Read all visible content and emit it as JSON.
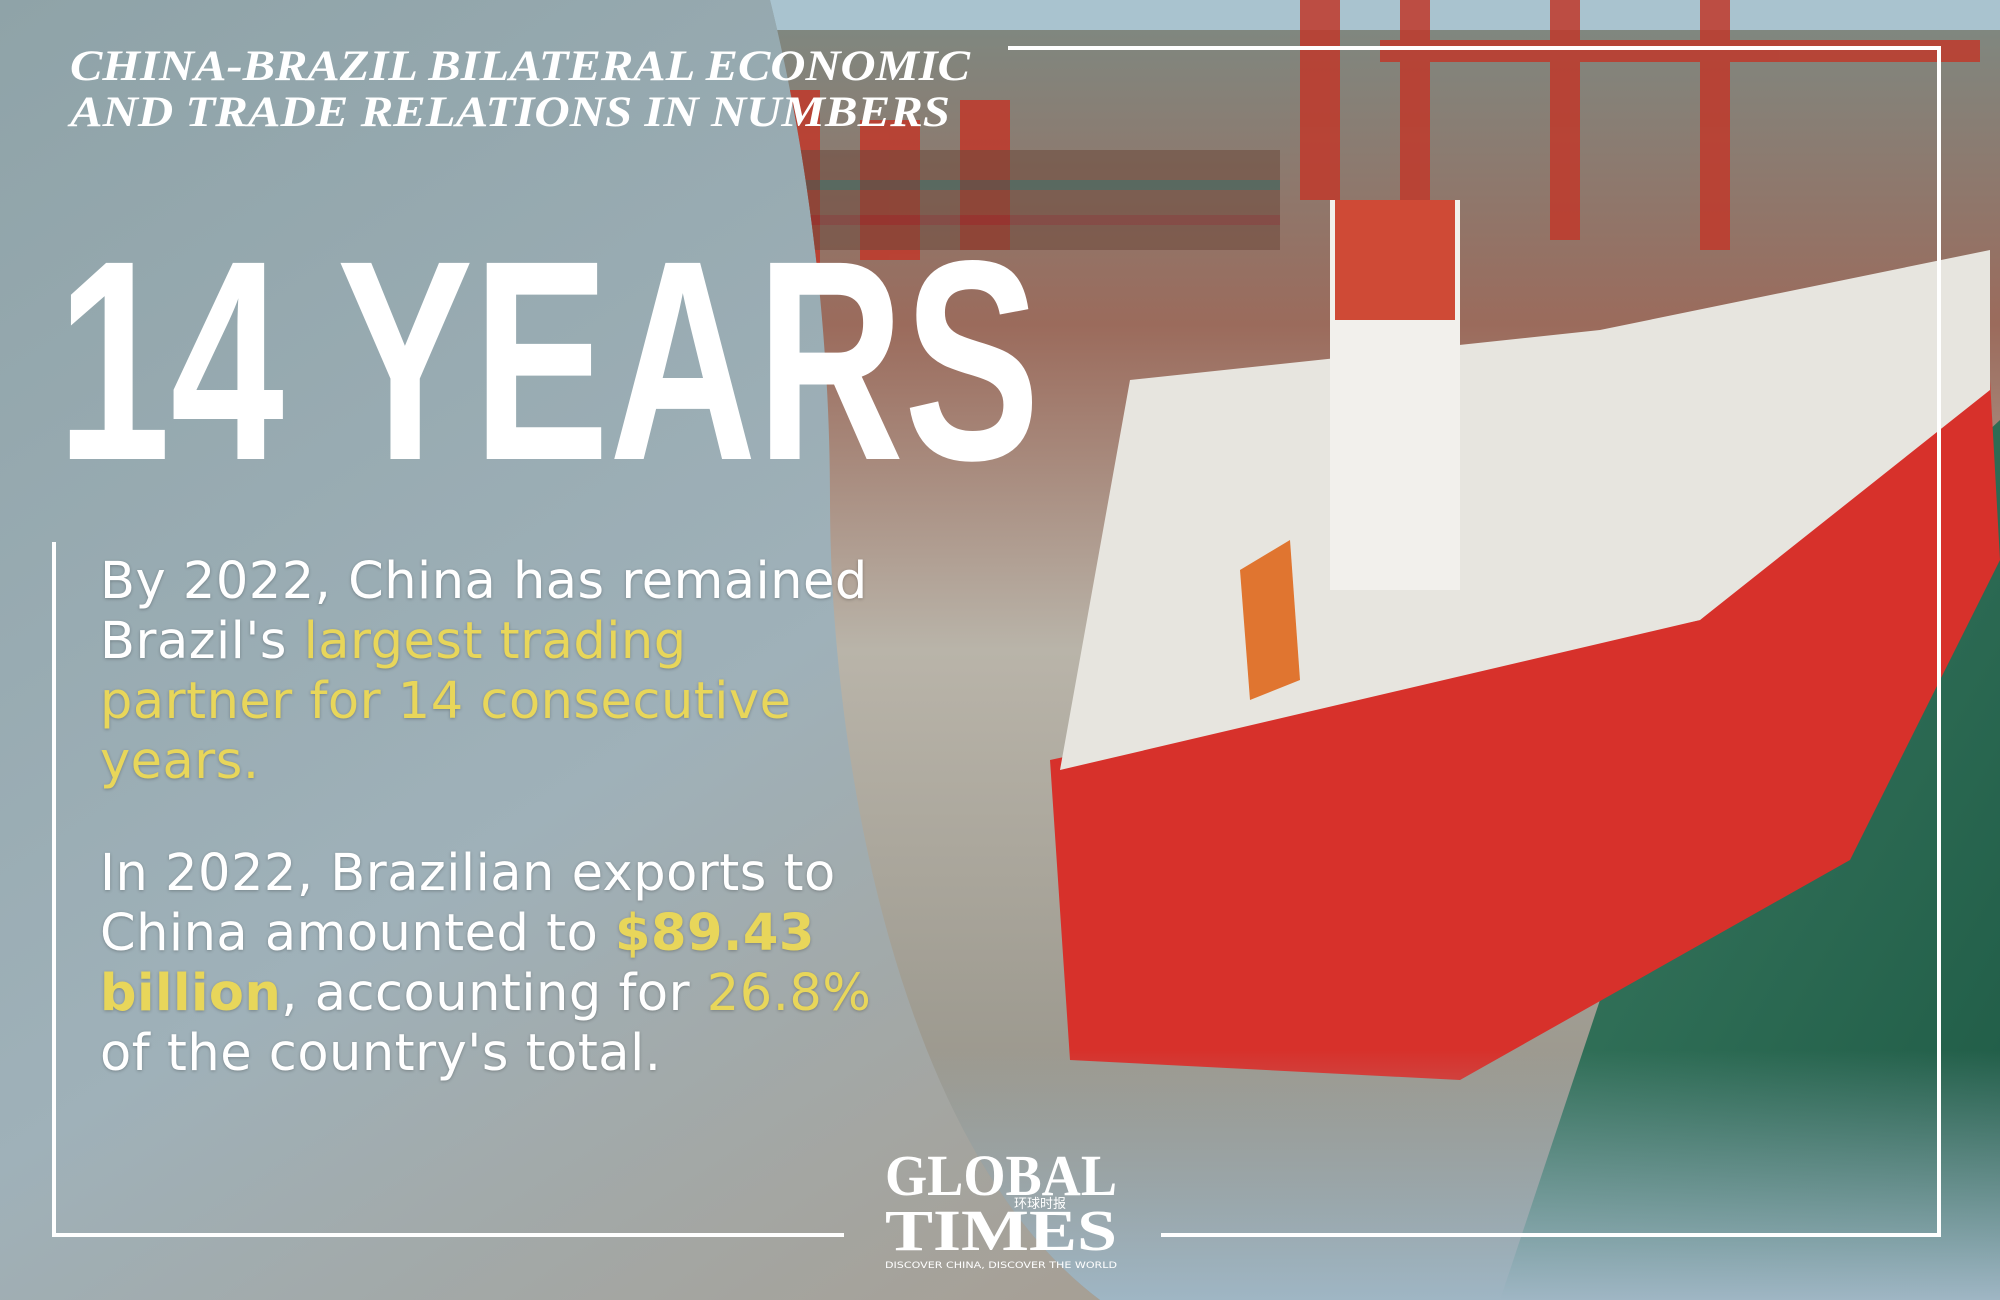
{
  "header": {
    "title_lines": [
      "CHINA-BRAZIL BILATERAL ECONOMIC",
      "AND TRADE RELATIONS IN NUMBERS"
    ]
  },
  "headline": "14 YEARS",
  "paragraphs": [
    [
      {
        "text": "By 2022, China has remained Brazil's "
      },
      {
        "text": "largest trading partner for 14 consecutive years."
      }
    ],
    [
      {
        "text": "In 2022, Brazilian exports to China amounted to "
      },
      {
        "text": "$89.43 billion"
      },
      {
        "text": ", accounting for "
      },
      {
        "text": "26.8%"
      },
      {
        "text": " of the country's total."
      }
    ]
  ],
  "logo": {
    "line1": "GLOBAL",
    "chinese": "环球时报",
    "line2": "TIMES",
    "tagline": "DISCOVER CHINA, DISCOVER THE WORLD"
  }
}
